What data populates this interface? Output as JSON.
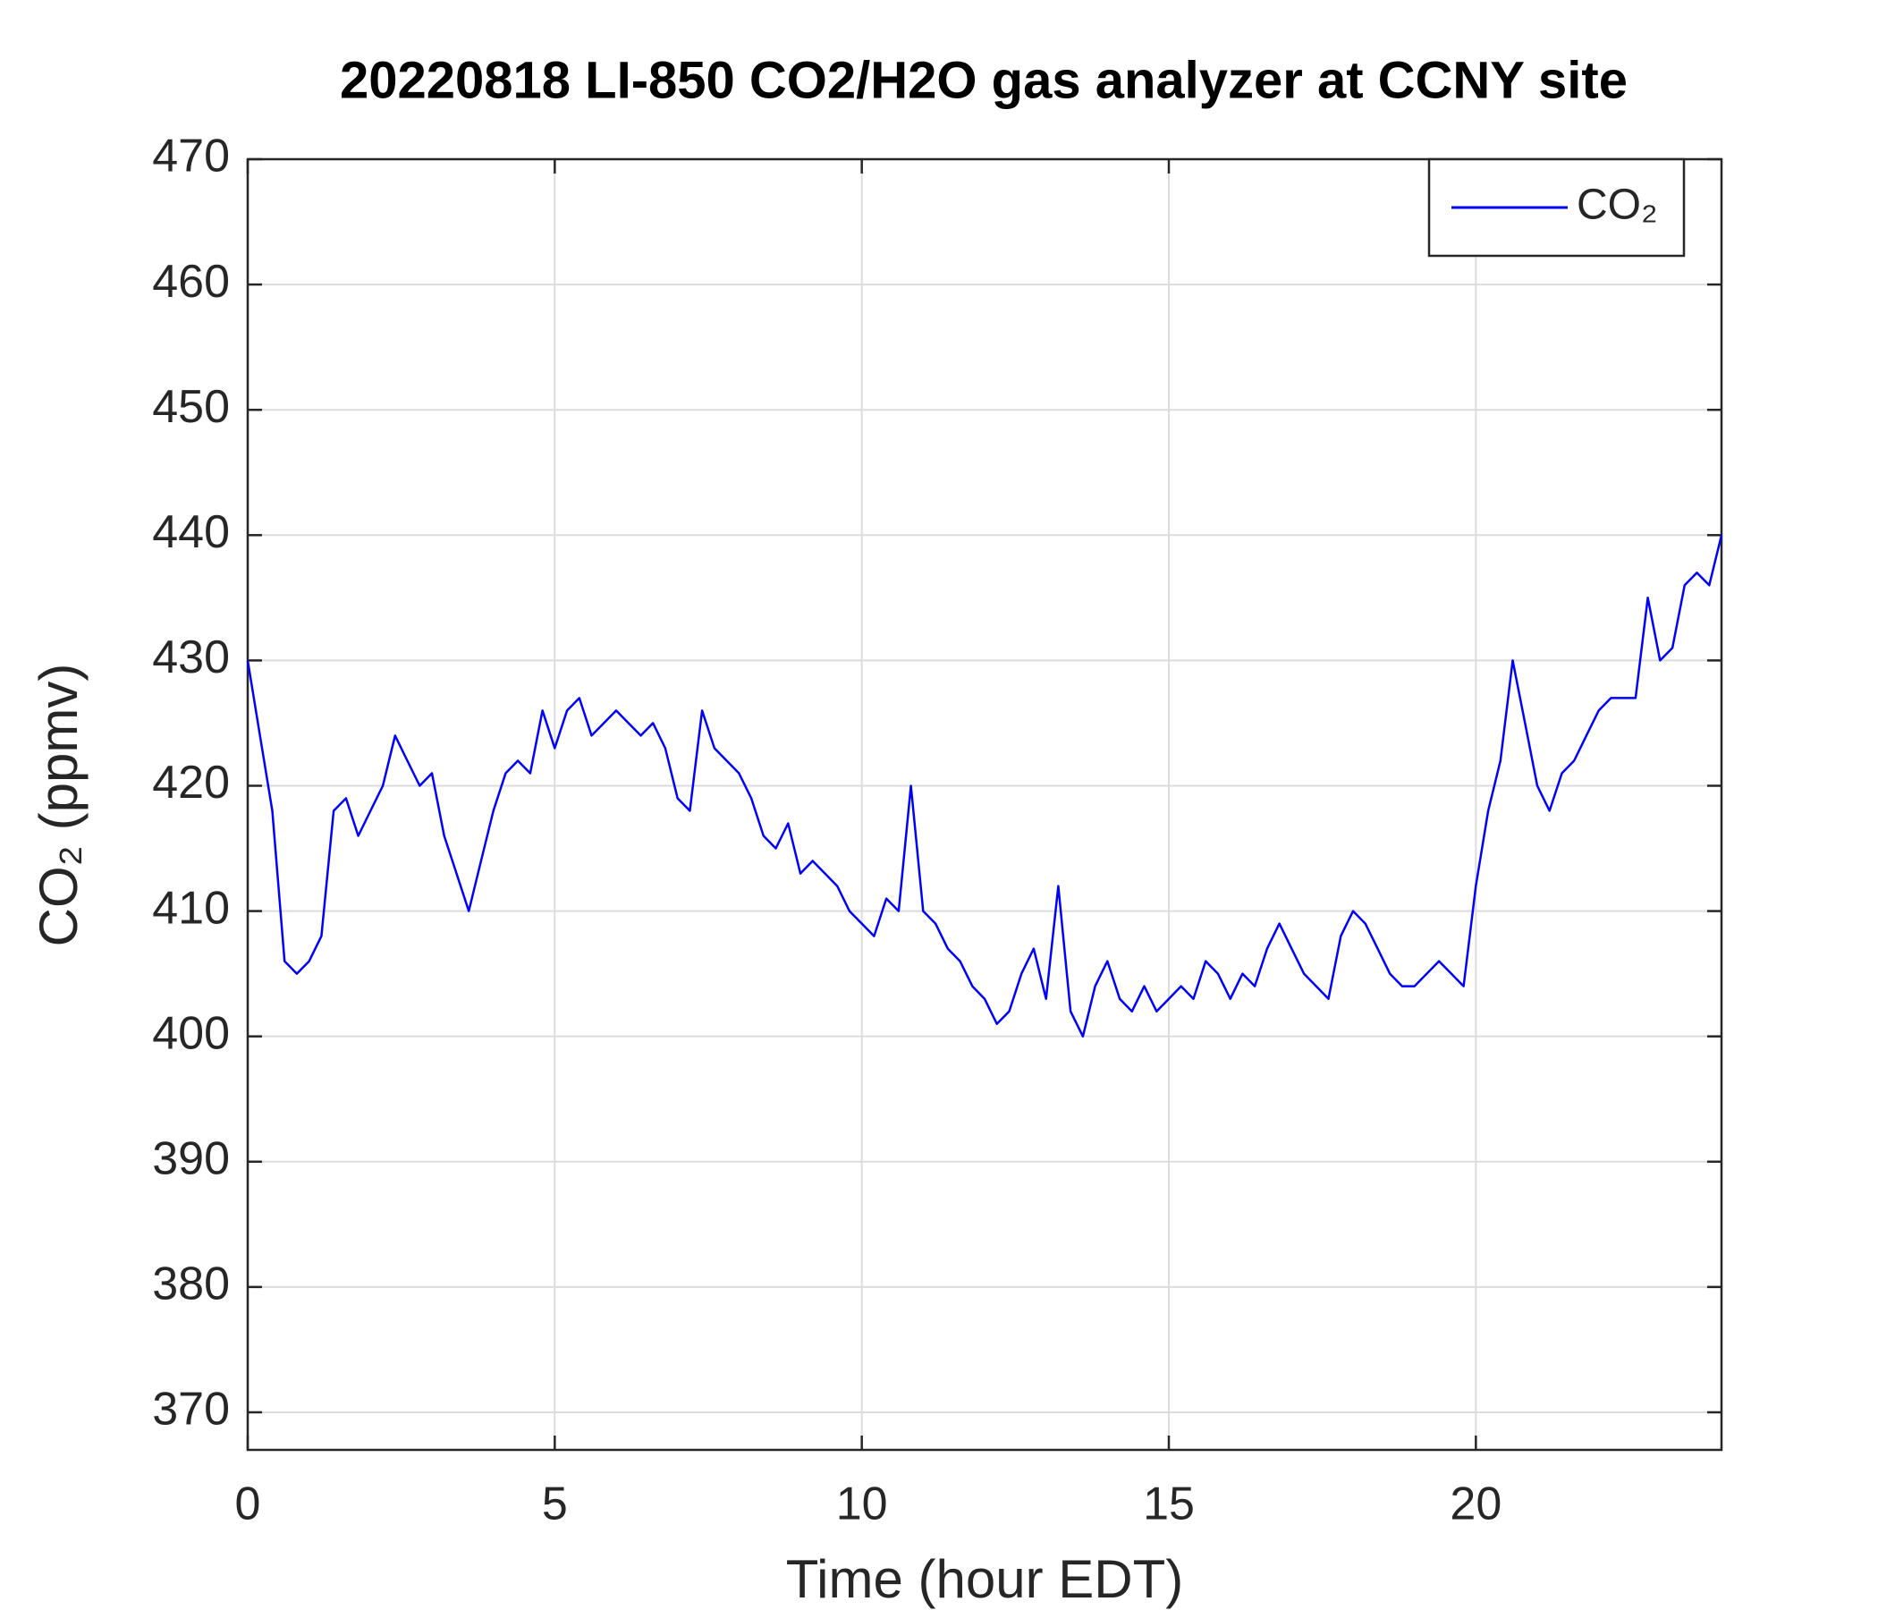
{
  "chart_data": {
    "type": "line",
    "title": "20220818 LI-850 CO2/H2O gas analyzer at CCNY site",
    "xlabel": "Time (hour EDT)",
    "ylabel": "CO₂ (ppmv)",
    "x": [
      0,
      0.2,
      0.4,
      0.6,
      0.8,
      1.0,
      1.2,
      1.4,
      1.6,
      1.8,
      2.0,
      2.2,
      2.4,
      2.6,
      2.8,
      3.0,
      3.2,
      3.4,
      3.6,
      3.8,
      4.0,
      4.2,
      4.4,
      4.6,
      4.8,
      5.0,
      5.2,
      5.4,
      5.6,
      5.8,
      6.0,
      6.2,
      6.4,
      6.6,
      6.8,
      7.0,
      7.2,
      7.4,
      7.6,
      7.8,
      8.0,
      8.2,
      8.4,
      8.6,
      8.8,
      9.0,
      9.2,
      9.4,
      9.6,
      9.8,
      10.0,
      10.2,
      10.4,
      10.6,
      10.8,
      11.0,
      11.2,
      11.4,
      11.6,
      11.8,
      12.0,
      12.2,
      12.4,
      12.6,
      12.8,
      13.0,
      13.2,
      13.4,
      13.6,
      13.8,
      14.0,
      14.2,
      14.4,
      14.6,
      14.8,
      15.0,
      15.2,
      15.4,
      15.6,
      15.8,
      16.0,
      16.2,
      16.4,
      16.6,
      16.8,
      17.0,
      17.2,
      17.4,
      17.6,
      17.8,
      18.0,
      18.2,
      18.4,
      18.6,
      18.8,
      19.0,
      19.2,
      19.4,
      19.6,
      19.8,
      20.0,
      20.2,
      20.4,
      20.6,
      20.8,
      21.0,
      21.2,
      21.4,
      21.6,
      21.8,
      22.0,
      22.2,
      22.4,
      22.6,
      22.8,
      23.0,
      23.2,
      23.4,
      23.6,
      23.8,
      24.0
    ],
    "series": [
      {
        "name": "CO₂",
        "color": "#0000ff",
        "values": [
          430,
          424,
          418,
          406,
          405,
          406,
          408,
          418,
          419,
          416,
          418,
          420,
          424,
          422,
          420,
          421,
          416,
          413,
          410,
          414,
          418,
          421,
          422,
          421,
          426,
          423,
          426,
          427,
          424,
          425,
          426,
          425,
          424,
          425,
          423,
          419,
          418,
          426,
          423,
          422,
          421,
          419,
          416,
          415,
          417,
          413,
          414,
          413,
          412,
          410,
          409,
          408,
          411,
          410,
          420,
          410,
          409,
          407,
          406,
          404,
          403,
          401,
          402,
          405,
          407,
          403,
          412,
          402,
          400,
          404,
          406,
          403,
          402,
          404,
          402,
          403,
          404,
          403,
          406,
          405,
          403,
          405,
          404,
          407,
          409,
          407,
          405,
          404,
          403,
          408,
          410,
          409,
          407,
          405,
          404,
          404,
          405,
          406,
          405,
          404,
          412,
          418,
          422,
          430,
          425,
          420,
          418,
          421,
          422,
          424,
          426,
          427,
          427,
          427,
          435,
          430,
          431,
          436,
          437,
          436,
          440
        ]
      }
    ],
    "xlim": [
      0,
      24
    ],
    "ylim": [
      367,
      470
    ],
    "xticks": [
      0,
      5,
      10,
      15,
      20
    ],
    "yticks": [
      370,
      380,
      390,
      400,
      410,
      420,
      430,
      440,
      450,
      460,
      470
    ],
    "grid": true,
    "legend": "upper right"
  }
}
